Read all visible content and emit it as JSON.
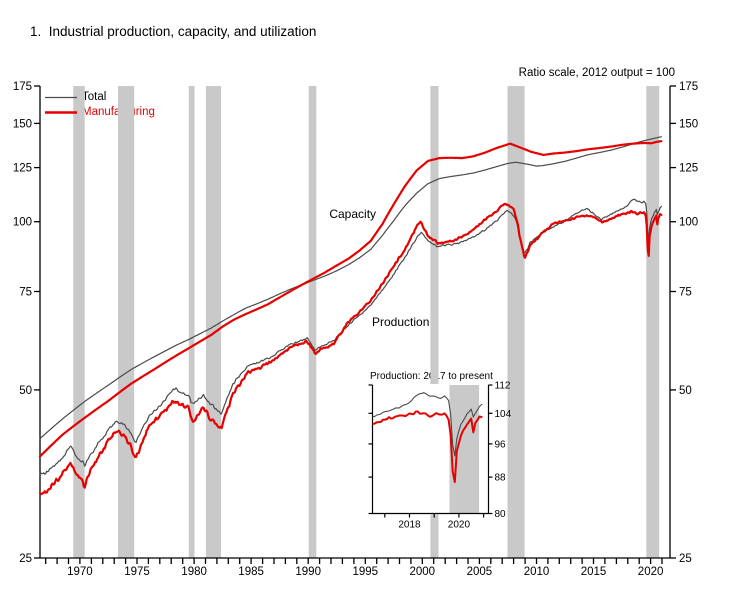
{
  "title": "1.  Industrial production, capacity, and utilization",
  "note": "Ratio scale, 2012 output = 100",
  "legend": [
    {
      "label": "Total",
      "color": "#4a4a4a"
    },
    {
      "label": "Manufacturing",
      "color": "#e60000"
    }
  ],
  "colors": {
    "total": "#4a4a4a",
    "manufacturing": "#e60000",
    "recession_band": "#c9c9c9",
    "axis": "#000000"
  },
  "chart_data": {
    "type": "line",
    "y_scale": "log",
    "ylim": [
      25,
      175
    ],
    "yticks": [
      25,
      50,
      75,
      100,
      125,
      150,
      175
    ],
    "xlim": [
      1967,
      2022.2
    ],
    "xtick_minor_step": 1,
    "xticks_labeled": [
      1970,
      1975,
      1980,
      1985,
      1990,
      1995,
      2000,
      2005,
      2010,
      2015,
      2020
    ],
    "grid": false,
    "recessions": [
      [
        1969.92,
        1970.92
      ],
      [
        1973.83,
        1975.25
      ],
      [
        1980.04,
        1980.54
      ],
      [
        1981.54,
        1982.87
      ],
      [
        1990.54,
        1991.21
      ],
      [
        2001.21,
        2001.92
      ],
      [
        2007.96,
        2009.46
      ],
      [
        2020.12,
        2021.25
      ]
    ],
    "labels": {
      "capacity": {
        "text": "Capacity",
        "x": 1994.4,
        "y": 103.3
      },
      "production": {
        "text": "Production",
        "x": 1998.6,
        "y": 66.1
      }
    },
    "series": [
      {
        "key": "capacity_total",
        "name": "Capacity - Total",
        "color": "#4a4a4a",
        "width": 1.2,
        "noisy": false,
        "points": [
          [
            1967,
            40.9
          ],
          [
            1969,
            44.4
          ],
          [
            1971,
            47.8
          ],
          [
            1973,
            51.0
          ],
          [
            1975,
            54.4
          ],
          [
            1977,
            57.3
          ],
          [
            1979,
            60.2
          ],
          [
            1980,
            61.5
          ],
          [
            1981,
            63.0
          ],
          [
            1982,
            64.5
          ],
          [
            1983,
            66.4
          ],
          [
            1984,
            68.2
          ],
          [
            1985,
            70.0
          ],
          [
            1986,
            71.3
          ],
          [
            1987,
            72.7
          ],
          [
            1988,
            74.3
          ],
          [
            1989,
            75.8
          ],
          [
            1990,
            77.2
          ],
          [
            1991,
            78.6
          ],
          [
            1992,
            80.0
          ],
          [
            1993,
            81.7
          ],
          [
            1994,
            83.7
          ],
          [
            1995,
            86.2
          ],
          [
            1996,
            89.3
          ],
          [
            1997,
            94.5
          ],
          [
            1998,
            100.5
          ],
          [
            1999,
            107.0
          ],
          [
            2000,
            112.5
          ],
          [
            2001,
            117.0
          ],
          [
            2002,
            119.5
          ],
          [
            2003,
            120.5
          ],
          [
            2004,
            121.3
          ],
          [
            2005,
            122.3
          ],
          [
            2006,
            123.8
          ],
          [
            2007,
            125.5
          ],
          [
            2008,
            127.2
          ],
          [
            2008.7,
            127.8
          ],
          [
            2009.5,
            127.0
          ],
          [
            2010.5,
            125.8
          ],
          [
            2011,
            126.0
          ],
          [
            2012,
            127.0
          ],
          [
            2013,
            128.3
          ],
          [
            2014,
            130.0
          ],
          [
            2015,
            131.8
          ],
          [
            2016,
            133.0
          ],
          [
            2017,
            134.3
          ],
          [
            2018,
            136.0
          ],
          [
            2019,
            138.0
          ],
          [
            2020,
            139.8
          ],
          [
            2021,
            141.3
          ],
          [
            2021.45,
            142.0
          ]
        ]
      },
      {
        "key": "capacity_mfg",
        "name": "Capacity - Manufacturing",
        "color": "#e60000",
        "width": 2.2,
        "noisy": false,
        "points": [
          [
            1967,
            38.0
          ],
          [
            1969,
            41.6
          ],
          [
            1971,
            44.7
          ],
          [
            1973,
            47.8
          ],
          [
            1975,
            51.3
          ],
          [
            1977,
            54.4
          ],
          [
            1979,
            57.7
          ],
          [
            1980,
            59.3
          ],
          [
            1981,
            61.0
          ],
          [
            1982,
            62.7
          ],
          [
            1983,
            64.9
          ],
          [
            1984,
            66.8
          ],
          [
            1985,
            68.3
          ],
          [
            1986,
            69.7
          ],
          [
            1987,
            71.2
          ],
          [
            1988,
            73.2
          ],
          [
            1989,
            75.2
          ],
          [
            1990,
            77.2
          ],
          [
            1991,
            79.2
          ],
          [
            1992,
            81.2
          ],
          [
            1993,
            83.5
          ],
          [
            1994,
            85.8
          ],
          [
            1995,
            88.8
          ],
          [
            1996,
            92.5
          ],
          [
            1997,
            99.0
          ],
          [
            1998,
            107.5
          ],
          [
            1999,
            116.0
          ],
          [
            2000,
            123.5
          ],
          [
            2001,
            128.5
          ],
          [
            2002,
            130.0
          ],
          [
            2003,
            130.2
          ],
          [
            2004,
            130.0
          ],
          [
            2005,
            131.0
          ],
          [
            2006,
            133.0
          ],
          [
            2007,
            135.5
          ],
          [
            2008.2,
            138.0
          ],
          [
            2009,
            136.0
          ],
          [
            2010,
            133.5
          ],
          [
            2011.1,
            131.7
          ],
          [
            2012,
            132.5
          ],
          [
            2013,
            133.0
          ],
          [
            2014,
            133.8
          ],
          [
            2015,
            134.8
          ],
          [
            2016,
            135.5
          ],
          [
            2017,
            136.3
          ],
          [
            2018,
            137.3
          ],
          [
            2019,
            138.0
          ],
          [
            2020,
            138.4
          ],
          [
            2020.6,
            138.2
          ],
          [
            2021,
            139.0
          ],
          [
            2021.45,
            139.4
          ]
        ]
      },
      {
        "key": "production_total",
        "name": "Production - Total",
        "color": "#4a4a4a",
        "width": 1.2,
        "noisy": true,
        "points": [
          [
            1967,
            35.2
          ],
          [
            1967.5,
            35.4
          ],
          [
            1968,
            36.3
          ],
          [
            1968.5,
            37.0
          ],
          [
            1969,
            37.9
          ],
          [
            1969.7,
            39.6
          ],
          [
            1970.2,
            38.0
          ],
          [
            1970.75,
            37.1
          ],
          [
            1970.92,
            36.6
          ],
          [
            1971.3,
            37.9
          ],
          [
            1972,
            39.8
          ],
          [
            1972.5,
            41.0
          ],
          [
            1973,
            42.6
          ],
          [
            1973.8,
            43.9
          ],
          [
            1974.3,
            43.4
          ],
          [
            1974.8,
            42.2
          ],
          [
            1975.4,
            40.3
          ],
          [
            1976,
            42.8
          ],
          [
            1976.6,
            45.1
          ],
          [
            1977.5,
            46.8
          ],
          [
            1978.8,
            50.2
          ],
          [
            1979.5,
            49.4
          ],
          [
            1980.04,
            48.8
          ],
          [
            1980.3,
            47.4
          ],
          [
            1980.54,
            47.2
          ],
          [
            1981.3,
            49.1
          ],
          [
            1982,
            47.0
          ],
          [
            1982.9,
            45.4
          ],
          [
            1983.9,
            51.1
          ],
          [
            1985.2,
            55.2
          ],
          [
            1986.1,
            55.9
          ],
          [
            1987.3,
            57.3
          ],
          [
            1988.5,
            59.7
          ],
          [
            1989.8,
            61.2
          ],
          [
            1990.4,
            61.8
          ],
          [
            1991.1,
            59.0
          ],
          [
            1992,
            60.3
          ],
          [
            1992.75,
            61.2
          ],
          [
            1994,
            65.3
          ],
          [
            1995,
            68.0
          ],
          [
            1996,
            71.0
          ],
          [
            1997,
            75.5
          ],
          [
            1998,
            80.5
          ],
          [
            1999,
            86.5
          ],
          [
            2000,
            93.5
          ],
          [
            2000.4,
            95.9
          ],
          [
            2001,
            92.5
          ],
          [
            2001.85,
            90.3
          ],
          [
            2002.5,
            90.8
          ],
          [
            2003.2,
            91.0
          ],
          [
            2004,
            92.0
          ],
          [
            2005,
            94.0
          ],
          [
            2006,
            96.8
          ],
          [
            2007,
            100.3
          ],
          [
            2007.9,
            104.8
          ],
          [
            2008.5,
            102.5
          ],
          [
            2008.8,
            99.5
          ],
          [
            2009,
            94.0
          ],
          [
            2009.45,
            87.5
          ],
          [
            2010,
            92.0
          ],
          [
            2011,
            95.5
          ],
          [
            2012,
            98.0
          ],
          [
            2013,
            100.3
          ],
          [
            2014,
            103.5
          ],
          [
            2014.9,
            105.8
          ],
          [
            2015.6,
            103.0
          ],
          [
            2016.25,
            101.0
          ],
          [
            2017,
            103.1
          ],
          [
            2017.5,
            104.2
          ],
          [
            2018,
            105.3
          ],
          [
            2018.5,
            107.3
          ],
          [
            2018.95,
            109.8
          ],
          [
            2019.3,
            108.8
          ],
          [
            2019.6,
            108.2
          ],
          [
            2019.95,
            108.8
          ],
          [
            2020.13,
            107.0
          ],
          [
            2020.2,
            100.0
          ],
          [
            2020.3,
            91.4
          ],
          [
            2020.42,
            97.5
          ],
          [
            2020.6,
            101.5
          ],
          [
            2020.8,
            103.5
          ],
          [
            2021,
            105.0
          ],
          [
            2021.08,
            102.7
          ],
          [
            2021.17,
            104.0
          ],
          [
            2021.3,
            105.7
          ],
          [
            2021.45,
            106.2
          ]
        ]
      },
      {
        "key": "production_mfg",
        "name": "Production - Manufacturing",
        "color": "#e60000",
        "width": 2.2,
        "noisy": true,
        "points": [
          [
            1967,
            32.6
          ],
          [
            1967.5,
            32.8
          ],
          [
            1968,
            33.8
          ],
          [
            1968.5,
            34.5
          ],
          [
            1969,
            35.5
          ],
          [
            1969.7,
            37.0
          ],
          [
            1970.2,
            35.4
          ],
          [
            1970.75,
            34.3
          ],
          [
            1970.92,
            33.6
          ],
          [
            1971.3,
            35.4
          ],
          [
            1972,
            37.6
          ],
          [
            1972.5,
            38.9
          ],
          [
            1973,
            40.7
          ],
          [
            1973.8,
            42.1
          ],
          [
            1974.3,
            41.6
          ],
          [
            1974.8,
            40.2
          ],
          [
            1975.4,
            37.7
          ],
          [
            1976,
            40.3
          ],
          [
            1976.6,
            43.3
          ],
          [
            1977.5,
            45.0
          ],
          [
            1978.8,
            47.9
          ],
          [
            1979.5,
            47.2
          ],
          [
            1980.04,
            46.4
          ],
          [
            1980.3,
            44.3
          ],
          [
            1980.54,
            44.1
          ],
          [
            1981.3,
            46.4
          ],
          [
            1982,
            44.2
          ],
          [
            1982.9,
            42.7
          ],
          [
            1983.9,
            49.0
          ],
          [
            1985.2,
            53.7
          ],
          [
            1986.1,
            54.5
          ],
          [
            1987.3,
            56.2
          ],
          [
            1988.5,
            58.8
          ],
          [
            1989.8,
            60.6
          ],
          [
            1990.4,
            61.0
          ],
          [
            1991.1,
            58.2
          ],
          [
            1992,
            59.6
          ],
          [
            1992.75,
            60.5
          ],
          [
            1994,
            66.0
          ],
          [
            1995,
            69.0
          ],
          [
            1996,
            72.5
          ],
          [
            1997,
            77.5
          ],
          [
            1998,
            83.0
          ],
          [
            1999,
            89.5
          ],
          [
            2000,
            98.0
          ],
          [
            2000.35,
            100.0
          ],
          [
            2001,
            94.5
          ],
          [
            2001.85,
            91.5
          ],
          [
            2002.5,
            92.0
          ],
          [
            2003.2,
            92.3
          ],
          [
            2004,
            94.0
          ],
          [
            2005,
            96.8
          ],
          [
            2006,
            100.8
          ],
          [
            2007,
            104.5
          ],
          [
            2007.8,
            108.2
          ],
          [
            2008.5,
            105.0
          ],
          [
            2008.8,
            100.5
          ],
          [
            2009,
            95.0
          ],
          [
            2009.45,
            86.0
          ],
          [
            2010,
            90.8
          ],
          [
            2011,
            95.5
          ],
          [
            2012,
            99.2
          ],
          [
            2013,
            100.4
          ],
          [
            2014,
            101.8
          ],
          [
            2014.9,
            102.8
          ],
          [
            2015.6,
            101.8
          ],
          [
            2016.25,
            99.8
          ],
          [
            2017,
            101.2
          ],
          [
            2017.5,
            102.3
          ],
          [
            2018,
            102.9
          ],
          [
            2018.8,
            104.4
          ],
          [
            2019.3,
            103.4
          ],
          [
            2019.7,
            103.8
          ],
          [
            2019.95,
            104.1
          ],
          [
            2020.13,
            101.5
          ],
          [
            2020.2,
            95.0
          ],
          [
            2020.3,
            84.0
          ],
          [
            2020.42,
            94.5
          ],
          [
            2020.6,
            98.5
          ],
          [
            2020.8,
            101.0
          ],
          [
            2021,
            102.8
          ],
          [
            2021.08,
            98.8
          ],
          [
            2021.17,
            101.5
          ],
          [
            2021.3,
            103.3
          ],
          [
            2021.45,
            103.0
          ]
        ]
      }
    ],
    "inset": {
      "title": "Production: 2017 to present",
      "type": "line",
      "y_scale": "log",
      "xlim": [
        2017.0,
        2021.7
      ],
      "ylim": [
        80,
        112
      ],
      "yticks": [
        80,
        88,
        96,
        104,
        112
      ],
      "xticks_minor": [
        2017.5,
        2018.5,
        2019.5,
        2020.5,
        2021.5
      ],
      "xticks_labeled": [
        {
          "label": "2018",
          "x": 2018.5
        },
        {
          "label": "2020",
          "x": 2020.5
        }
      ],
      "recession": [
        2020.12,
        2021.32
      ],
      "series_keys": [
        "production_total",
        "production_mfg"
      ]
    }
  }
}
